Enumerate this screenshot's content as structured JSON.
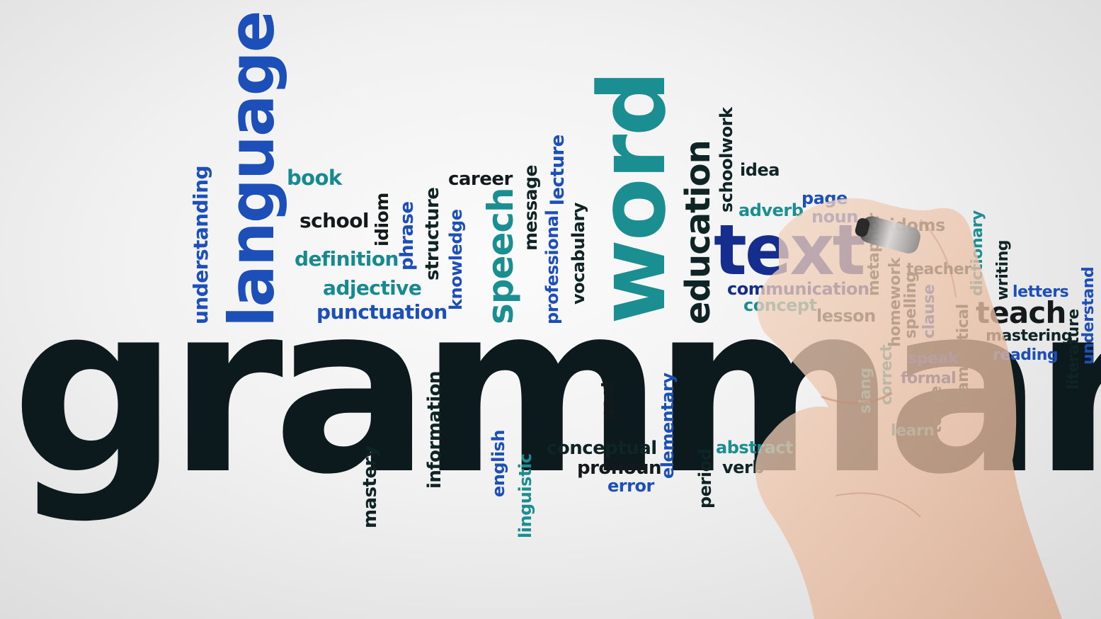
{
  "words": {
    "grammar": "grammar",
    "language": "language",
    "word": "word",
    "text": "text",
    "speech": "speech",
    "education": "education",
    "teach": "teach",
    "understanding": "understanding",
    "book": "book",
    "school": "school",
    "definition": "definition",
    "adjective": "adjective",
    "punctuation": "punctuation",
    "idiom": "idiom",
    "phrase": "phrase",
    "structure": "structure",
    "knowledge": "knowledge",
    "career": "career",
    "message": "message",
    "professional": "professional",
    "lecture": "lecture",
    "vocabulary": "vocabulary",
    "schoolwork": "schoolwork",
    "idea": "idea",
    "adverb": "adverb",
    "page": "page",
    "noun": "noun",
    "idoms": "idoms",
    "communication": "communication",
    "concept": "concept",
    "lesson": "lesson",
    "metaphor": "metaphor",
    "homework": "homework",
    "teacher": "teacher",
    "spelling": "spelling",
    "clause": "clause",
    "dictionary": "dictionary",
    "writing": "writing",
    "letters": "letters",
    "understand": "understand",
    "mastering": "mastering",
    "reading": "reading",
    "literature": "literature",
    "grammatical": "grammatical",
    "speak": "speak",
    "formal": "formal",
    "correct": "correct",
    "slang": "slang",
    "tense": "tense",
    "learn": "learn",
    "abstract": "abstract",
    "verb": "verb",
    "period": "period",
    "elementary": "elementary",
    "past": "past",
    "conceptual": "conceptual",
    "pronoun": "pronoun",
    "error": "error",
    "linguistic": "linguistic",
    "english": "english",
    "information": "information",
    "mastery": "mastery"
  }
}
